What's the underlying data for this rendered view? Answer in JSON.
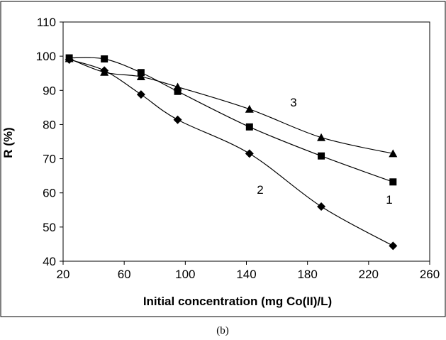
{
  "chart_data": {
    "type": "line",
    "title": "",
    "caption": "(b)",
    "xlabel": "Initial concentration (mg Co(II)/L)",
    "ylabel": "R (%)",
    "xlim": [
      20,
      260
    ],
    "ylim": [
      40,
      110
    ],
    "xticks": [
      20,
      60,
      100,
      140,
      180,
      220,
      260
    ],
    "yticks": [
      40,
      50,
      60,
      70,
      80,
      90,
      100,
      110
    ],
    "grid": false,
    "legend": "none",
    "series": [
      {
        "name": "1",
        "marker": "square",
        "color": "#000000",
        "x": [
          24,
          47,
          71,
          95,
          142,
          189,
          236
        ],
        "values": [
          99.5,
          99.2,
          95.2,
          89.7,
          79.3,
          70.8,
          63.2
        ]
      },
      {
        "name": "2",
        "marker": "diamond",
        "color": "#000000",
        "x": [
          24,
          47,
          71,
          95,
          142,
          189,
          236
        ],
        "values": [
          99.0,
          95.8,
          88.8,
          81.4,
          71.5,
          56.0,
          44.5
        ]
      },
      {
        "name": "3",
        "marker": "triangle",
        "color": "#000000",
        "x": [
          24,
          47,
          71,
          95,
          142,
          189,
          236
        ],
        "values": [
          99.3,
          95.3,
          94.0,
          91.0,
          84.5,
          76.2,
          71.5
        ]
      }
    ]
  }
}
